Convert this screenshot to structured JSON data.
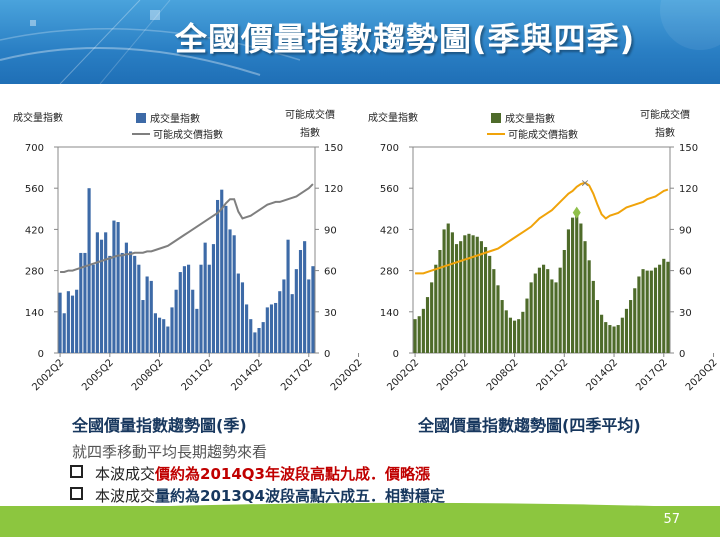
{
  "header": {
    "title": "全國價量指數趨勢圖(季與四季)"
  },
  "chart_data": [
    {
      "type": "bar+line",
      "caption": "全國價量指數趨勢圖(季)",
      "legend": {
        "bar": "成交量指數",
        "line": "可能成交價指數"
      },
      "left_axis_label": "成交量指數",
      "right_axis_label": [
        "可能成交價",
        "指數"
      ],
      "y_left_ticks": [
        "700",
        "560",
        "420",
        "280",
        "140",
        "0"
      ],
      "y_right_ticks": [
        "150",
        "120",
        "90",
        "60",
        "30",
        "0"
      ],
      "ylim_left": [
        0,
        700
      ],
      "ylim_right": [
        0,
        150
      ],
      "x_ticks": [
        "2002Q2",
        "2005Q2",
        "2008Q2",
        "2011Q2",
        "2014Q2",
        "2017Q2",
        "2020Q2"
      ],
      "bar_values": [
        205,
        135,
        210,
        195,
        215,
        340,
        340,
        560,
        300,
        410,
        385,
        410,
        330,
        450,
        445,
        340,
        375,
        345,
        330,
        300,
        180,
        260,
        245,
        135,
        120,
        115,
        90,
        155,
        215,
        275,
        295,
        300,
        215,
        150,
        300,
        375,
        300,
        370,
        520,
        555,
        500,
        420,
        400,
        270,
        240,
        165,
        115,
        70,
        85,
        105,
        155,
        165,
        170,
        210,
        250,
        385,
        200,
        285,
        350,
        380,
        250,
        295
      ],
      "line_values": [
        59,
        59,
        60,
        60,
        61,
        62,
        63,
        64,
        65,
        66,
        67,
        68,
        69,
        70,
        71,
        71,
        72,
        72,
        73,
        73,
        73,
        74,
        74,
        75,
        76,
        77,
        78,
        80,
        82,
        84,
        86,
        88,
        90,
        92,
        94,
        96,
        98,
        100,
        102,
        105,
        109,
        112,
        112,
        103,
        98,
        99,
        100,
        102,
        104,
        106,
        108,
        109,
        110,
        110,
        111,
        112,
        113,
        114,
        116,
        118,
        120,
        123
      ],
      "colors": {
        "bar": "#3d6aa7",
        "line": "#7f7f7f"
      }
    },
    {
      "type": "bar+line",
      "caption": "全國價量指數趨勢圖(四季平均)",
      "legend": {
        "bar": "成交量指數",
        "line": "可能成交價指數"
      },
      "left_axis_label": "成交量指數",
      "right_axis_label": [
        "可能成交價",
        "指數"
      ],
      "y_left_ticks": [
        "700",
        "560",
        "420",
        "280",
        "140",
        "0"
      ],
      "y_right_ticks": [
        "150",
        "120",
        "90",
        "60",
        "30",
        "0"
      ],
      "ylim_left": [
        0,
        700
      ],
      "ylim_right": [
        0,
        150
      ],
      "x_ticks": [
        "2002Q2",
        "2005Q2",
        "2008Q2",
        "2011Q2",
        "2014Q2",
        "2017Q2",
        "2020Q2"
      ],
      "bar_values": [
        115,
        125,
        150,
        190,
        240,
        300,
        350,
        420,
        440,
        410,
        370,
        380,
        400,
        405,
        400,
        395,
        380,
        360,
        330,
        285,
        230,
        180,
        145,
        120,
        110,
        115,
        140,
        185,
        240,
        270,
        290,
        300,
        285,
        250,
        240,
        290,
        350,
        420,
        460,
        470,
        440,
        380,
        315,
        245,
        180,
        130,
        105,
        95,
        90,
        95,
        120,
        150,
        180,
        220,
        260,
        285,
        280,
        280,
        290,
        300,
        320,
        310
      ],
      "line_values": [
        58,
        58,
        58,
        59,
        60,
        61,
        62,
        63,
        64,
        65,
        66,
        67,
        68,
        69,
        70,
        71,
        72,
        73,
        74,
        75,
        76,
        78,
        80,
        82,
        84,
        86,
        88,
        90,
        92,
        95,
        98,
        100,
        102,
        104,
        107,
        110,
        113,
        116,
        118,
        121,
        123,
        124,
        122,
        116,
        108,
        101,
        98,
        100,
        101,
        102,
        104,
        106,
        107,
        108,
        109,
        110,
        112,
        113,
        114,
        116,
        118,
        119
      ],
      "markers": {
        "peak_x_label": "×",
        "note": "volume peak and price peak marked"
      },
      "colors": {
        "bar": "#4e6b2a",
        "line": "#f0a30a"
      }
    }
  ],
  "text": {
    "intro": "就四季移動平均長期趨勢來看",
    "bullet1_plain": "本波成交",
    "bullet1_red": "價約為2014Q3年波段高點九成．價略漲",
    "bullet2_plain": "本波成交",
    "bullet2_dark": "量約為2013Q4波段高點六成五．相對穩定"
  },
  "footer": {
    "page_number": "57"
  }
}
